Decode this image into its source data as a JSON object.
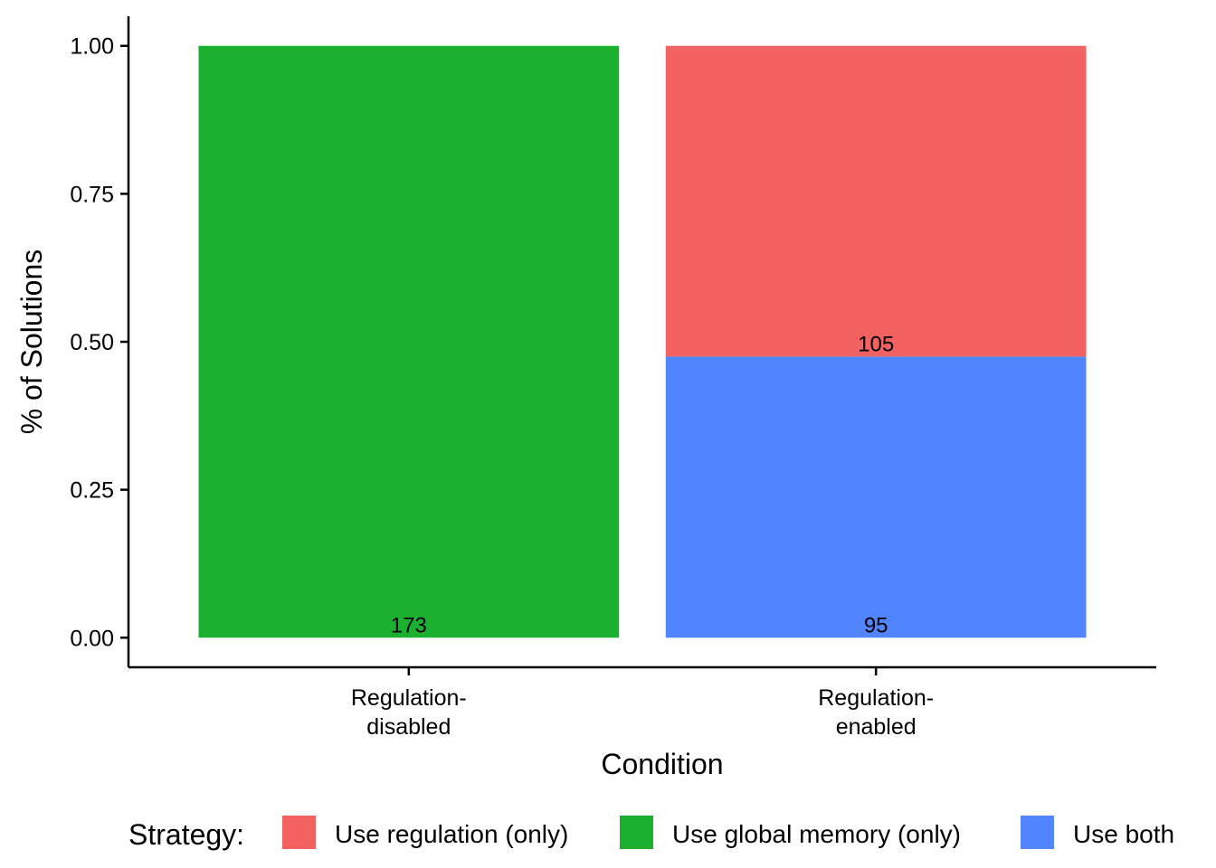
{
  "chart_data": {
    "type": "bar",
    "stacked": true,
    "normalized": true,
    "categories": [
      "Regulation-\ndisabled",
      "Regulation-\nenabled"
    ],
    "series": [
      {
        "name": "Use regulation (only)",
        "color": "#F26260",
        "values": [
          0,
          105
        ]
      },
      {
        "name": "Use global memory (only)",
        "color": "#1BB02F",
        "values": [
          173,
          0
        ]
      },
      {
        "name": "Use both",
        "color": "#5085FF",
        "values": [
          0,
          95
        ]
      }
    ],
    "stack_order_bottom_to_top": [
      "Use both",
      "Use global memory (only)",
      "Use regulation (only)"
    ],
    "xlabel": "Condition",
    "ylabel": "% of Solutions",
    "ylim": [
      -0.05,
      1.05
    ],
    "yticks": [
      0.0,
      0.25,
      0.5,
      0.75,
      1.0
    ],
    "ytick_labels": [
      "0.00",
      "0.25",
      "0.50",
      "0.75",
      "1.00"
    ],
    "grid": false,
    "legend": {
      "title": "Strategy:",
      "position": "bottom"
    }
  }
}
